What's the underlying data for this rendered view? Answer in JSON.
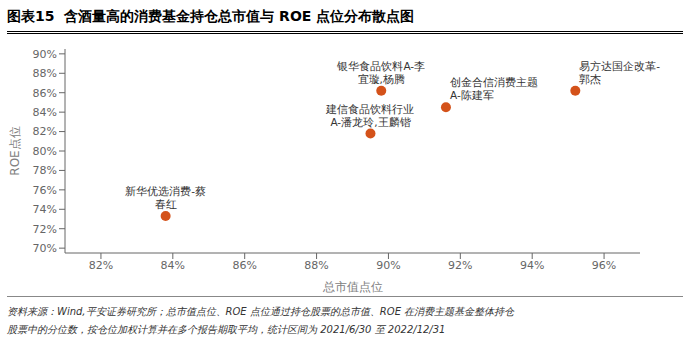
{
  "chart_data": {
    "type": "scatter",
    "title": "图表15  含酒量高的消费基金持仓总市值与 ROE 点位分布散点图",
    "xlabel": "总市值点位",
    "ylabel": "ROE点位",
    "x": [
      0.838,
      0.895,
      0.898,
      0.916,
      0.952
    ],
    "values": [
      0.733,
      0.818,
      0.862,
      0.845,
      0.862
    ],
    "labels": [
      "新华优选消费-蔡\n春红",
      "建信食品饮料行业\nA-潘龙玲,王麟锴",
      "银华食品饮料A-李\n宜璇,杨腾",
      "创金合信消费主题\nA-陈建军",
      "易方达国企改革-\n郭杰"
    ],
    "color": "#D4521A",
    "xlim": [
      0.81,
      0.97
    ],
    "ylim": [
      0.695,
      0.905
    ],
    "xticks": [
      {
        "value": 0.82,
        "label": "82%"
      },
      {
        "value": 0.84,
        "label": "84%"
      },
      {
        "value": 0.86,
        "label": "86%"
      },
      {
        "value": 0.88,
        "label": "88%"
      },
      {
        "value": 0.9,
        "label": "90%"
      },
      {
        "value": 0.92,
        "label": "92%"
      },
      {
        "value": 0.94,
        "label": "94%"
      },
      {
        "value": 0.96,
        "label": "96%"
      }
    ],
    "yticks": [
      {
        "value": 0.7,
        "label": "70%"
      },
      {
        "value": 0.72,
        "label": "72%"
      },
      {
        "value": 0.74,
        "label": "74%"
      },
      {
        "value": 0.76,
        "label": "76%"
      },
      {
        "value": 0.78,
        "label": "78%"
      },
      {
        "value": 0.8,
        "label": "80%"
      },
      {
        "value": 0.82,
        "label": "82%"
      },
      {
        "value": 0.84,
        "label": "84%"
      },
      {
        "value": 0.86,
        "label": "86%"
      },
      {
        "value": 0.88,
        "label": "88%"
      },
      {
        "value": 0.9,
        "label": "90%"
      }
    ],
    "grid": false,
    "footnotes": [
      "资料来源：Wind,平安证券研究所；总市值点位、ROE 点位通过持仓股票的总市值、ROE 在消费主题基金整体持仓",
      "股票中的分位数，按仓位加权计算并在多个报告期取平均，统计区间为 2021/6/30 至 2022/12/31"
    ]
  }
}
